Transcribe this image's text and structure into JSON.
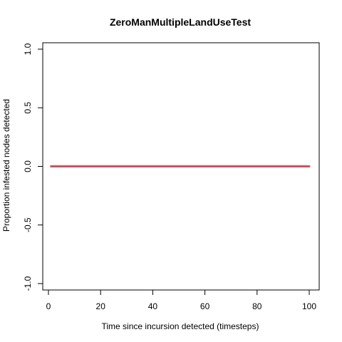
{
  "chart_data": {
    "type": "line",
    "title": "ZeroManMultipleLandUseTest",
    "xlabel": "Time since incursion detected (timesteps)",
    "ylabel": "Proportion infested nodes detected",
    "xlim": [
      1,
      100
    ],
    "ylim": [
      -1.0,
      1.0
    ],
    "x_ticks": [
      0,
      20,
      40,
      60,
      80,
      100
    ],
    "x_tick_labels": [
      "0",
      "20",
      "40",
      "60",
      "80",
      "100"
    ],
    "y_ticks": [
      -1.0,
      -0.5,
      0.0,
      0.5,
      1.0
    ],
    "y_tick_labels": [
      "-1.0",
      "-0.5",
      "0.0",
      "0.5",
      "1.0"
    ],
    "grid": false,
    "series": [
      {
        "color": "#d0505f",
        "x": [
          1,
          100
        ],
        "y": [
          0,
          0
        ]
      }
    ]
  }
}
